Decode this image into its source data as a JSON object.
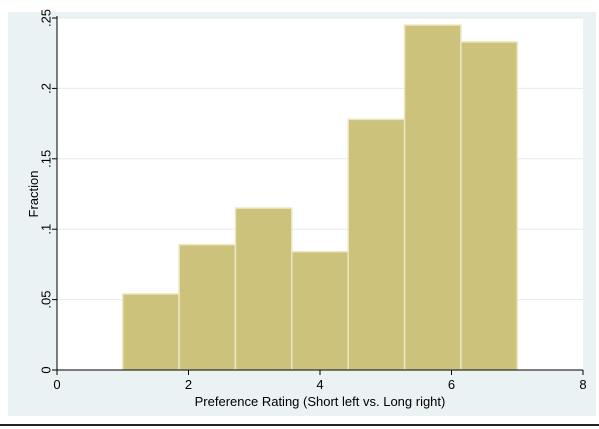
{
  "chart_data": {
    "type": "bar",
    "title": "",
    "xlabel": "Preference Rating (Short left vs. Long right)",
    "ylabel": "Fraction",
    "xlim": [
      0,
      8
    ],
    "ylim": [
      0,
      0.25
    ],
    "x_ticks": [
      0,
      2,
      4,
      6,
      8
    ],
    "x_tick_labels": [
      "0",
      "2",
      "4",
      "6",
      "8"
    ],
    "y_ticks": [
      0,
      0.05,
      0.1,
      0.15,
      0.2,
      0.25
    ],
    "y_tick_labels": [
      "0",
      ".05",
      ".1",
      ".15",
      ".2",
      ".25"
    ],
    "grid": true,
    "bins": [
      {
        "x0": 1.0,
        "x1": 1.857,
        "value": 0.054
      },
      {
        "x0": 1.857,
        "x1": 2.714,
        "value": 0.089
      },
      {
        "x0": 2.714,
        "x1": 3.571,
        "value": 0.115
      },
      {
        "x0": 3.571,
        "x1": 4.429,
        "value": 0.084
      },
      {
        "x0": 4.429,
        "x1": 5.286,
        "value": 0.178
      },
      {
        "x0": 5.286,
        "x1": 6.143,
        "value": 0.245
      },
      {
        "x0": 6.143,
        "x1": 7.0,
        "value": 0.233
      }
    ],
    "colors": {
      "bar_fill": "#cdc27b",
      "bar_edge": "#ece6c0",
      "plot_bg": "#ffffff",
      "panel_bg": "#eaf2f3",
      "grid": "#e3ebee",
      "axis": "#000000"
    }
  }
}
